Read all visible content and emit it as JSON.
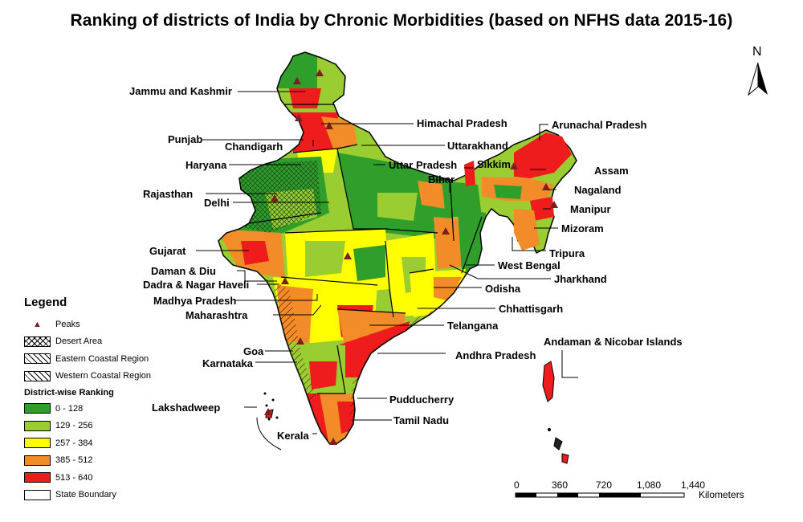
{
  "title": "Ranking of districts of India by Chronic Morbidities (based on NFHS data 2015-16)",
  "north_arrow": "N",
  "colors": {
    "rank_0_128": "#2f9e2b",
    "rank_129_256": "#9acd32",
    "rank_257_384": "#ffff00",
    "rank_385_512": "#f28c28",
    "rank_513_640": "#ee1c1c",
    "peak": "#7a1f1f",
    "boundary": "#000000"
  },
  "labels": {
    "jk": "Jammu and Kashmir",
    "hp": "Himachal Pradesh",
    "punjab": "Punjab",
    "chandigarh": "Chandigarh",
    "uttarakhand": "Uttarakhand",
    "haryana": "Haryana",
    "up": "Uttar Pradesh",
    "bihar": "Bihar",
    "rajasthan": "Rajasthan",
    "delhi": "Delhi",
    "gujarat": "Gujarat",
    "daman": "Daman & Diu",
    "dnh": "Dadra & Nagar Haveli",
    "mp": "Madhya Pradesh",
    "maharashtra": "Maharashtra",
    "goa": "Goa",
    "karnataka": "Karnataka",
    "lakshadweep": "Lakshadweep",
    "kerala": "Kerala",
    "arunachal": "Arunachal Pradesh",
    "sikkim": "Sikkim",
    "assam": "Assam",
    "nagaland": "Nagaland",
    "manipur": "Manipur",
    "mizoram": "Mizoram",
    "tripura": "Tripura",
    "wb": "West Bengal",
    "jharkhand": "Jharkhand",
    "odisha": "Odisha",
    "chhattisgarh": "Chhattisgarh",
    "telangana": "Telangana",
    "ap": "Andhra Pradesh",
    "andaman": "Andaman & Nicobar Islands",
    "puducherry": "Pudducherry",
    "tn": "Tamil Nadu"
  },
  "legend": {
    "title": "Legend",
    "peaks": "Peaks",
    "desert": "Desert Area",
    "eastern": "Eastern Coastal Region",
    "western": "Western Coastal Region",
    "ranking_title": "District-wise Ranking",
    "r1": "0 - 128",
    "r2": "129 - 256",
    "r3": "257 - 384",
    "r4": "385 - 512",
    "r5": "513 - 640",
    "boundary": "State Boundary"
  },
  "scale": {
    "t0": "0",
    "t1": "360",
    "t2": "720",
    "t3": "1,080",
    "t4": "1,440",
    "unit": "Kilometers"
  }
}
